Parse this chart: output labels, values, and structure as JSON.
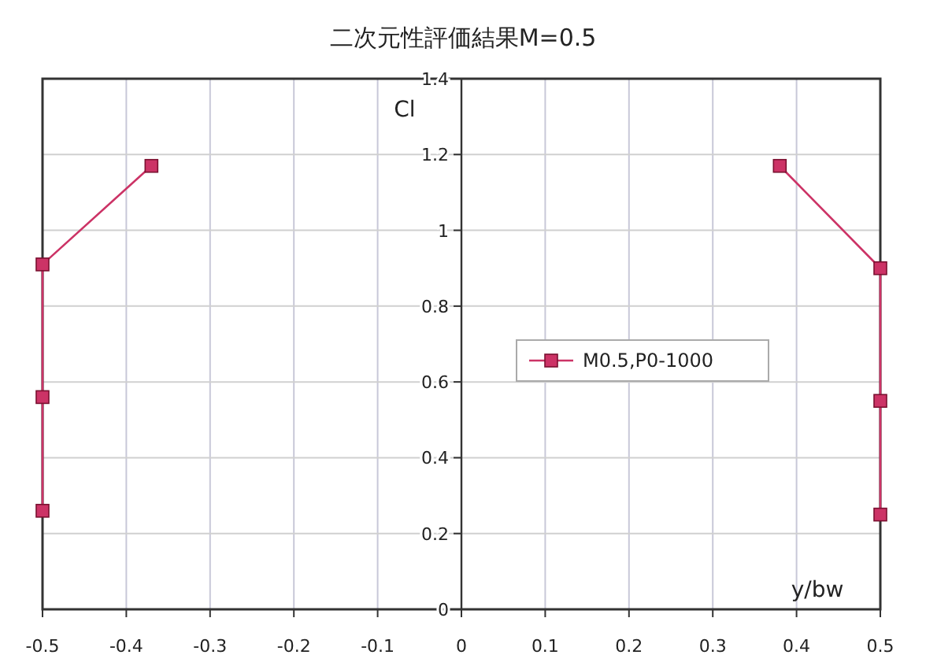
{
  "chart_data": {
    "type": "line",
    "title": "二次元性評価結果M=0.5",
    "xlabel": "y/bw",
    "ylabel": "Cl",
    "series": [
      {
        "name": "M0.5,P0-1000",
        "color": "#cc3366",
        "x": [
          -0.5,
          -0.5,
          -0.5,
          -0.37
        ],
        "values": [
          0.26,
          0.56,
          0.91,
          1.17
        ]
      },
      {
        "color": "#cc3366",
        "x": [
          0.38,
          0.5,
          0.5,
          0.5
        ],
        "values": [
          1.17,
          0.9,
          0.55,
          0.25
        ]
      }
    ],
    "xlim": [
      -0.5,
      0.5
    ],
    "xticks": [
      -0.5,
      -0.4,
      -0.3,
      -0.2,
      -0.1,
      0,
      0.1,
      0.2,
      0.3,
      0.4,
      0.5
    ],
    "ylim": [
      0,
      1.4
    ],
    "yticks": [
      0,
      0.2,
      0.4,
      0.6,
      0.8,
      1,
      1.2,
      1.4
    ],
    "grid": true,
    "legend": "right",
    "marker": "square",
    "line_style": "solid"
  }
}
